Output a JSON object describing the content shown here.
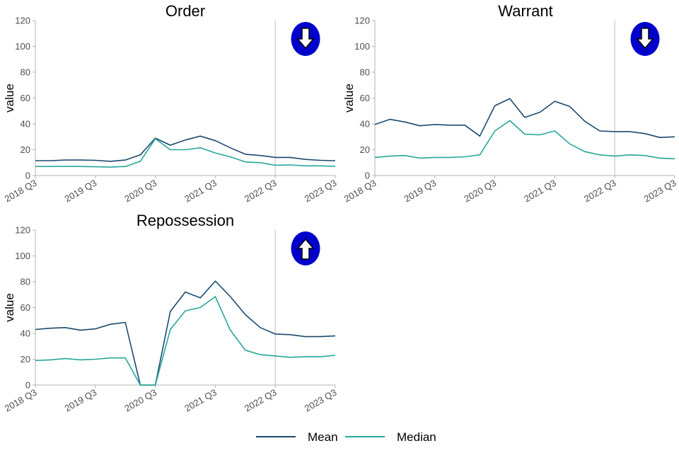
{
  "colors": {
    "mean": "#1a4a6e",
    "median": "#26a69a",
    "badge": "#0000cc"
  },
  "legend": {
    "mean_label": "Mean",
    "median_label": "Median"
  },
  "chart_data": [
    {
      "type": "line",
      "title": "Order",
      "ylabel": "value",
      "ylim": [
        0,
        120
      ],
      "yticks": [
        "0",
        "20",
        "40",
        "60",
        "80",
        "100",
        "120"
      ],
      "xticks": [
        "2018 Q3",
        "2019 Q3",
        "2020 Q3",
        "2021 Q3",
        "2022 Q3",
        "2023 Q3"
      ],
      "reference_line_x": "2022 Q3",
      "trend_icon": "arrow-down-icon",
      "x": [
        "2018 Q3",
        "2018 Q4",
        "2019 Q1",
        "2019 Q2",
        "2019 Q3",
        "2019 Q4",
        "2020 Q1",
        "2020 Q2",
        "2020 Q3",
        "2020 Q4",
        "2021 Q1",
        "2021 Q2",
        "2021 Q3",
        "2021 Q4",
        "2022 Q1",
        "2022 Q2",
        "2022 Q3",
        "2022 Q4",
        "2023 Q1",
        "2023 Q2",
        "2023 Q3"
      ],
      "series": [
        {
          "name": "Mean",
          "values": [
            11.5,
            11.5,
            12,
            12,
            11.8,
            11,
            12,
            16,
            29,
            23.5,
            27.5,
            30.5,
            27,
            21.5,
            16.5,
            15.5,
            14,
            14,
            12.5,
            11.8,
            11.5
          ]
        },
        {
          "name": "Median",
          "values": [
            7,
            7,
            7,
            7,
            6.8,
            6.5,
            7,
            11,
            28.5,
            20,
            20,
            21.5,
            17.5,
            14.5,
            10.5,
            10,
            8,
            8.2,
            7.5,
            7.5,
            7.2
          ]
        }
      ]
    },
    {
      "type": "line",
      "title": "Warrant",
      "ylabel": "value",
      "ylim": [
        0,
        120
      ],
      "yticks": [
        "0",
        "20",
        "40",
        "60",
        "80",
        "100",
        "120"
      ],
      "xticks": [
        "2018 Q3",
        "2019 Q3",
        "2020 Q3",
        "2021 Q3",
        "2022 Q3",
        "2023 Q3"
      ],
      "reference_line_x": "2022 Q3",
      "trend_icon": "arrow-down-icon",
      "x": [
        "2018 Q3",
        "2018 Q4",
        "2019 Q1",
        "2019 Q2",
        "2019 Q3",
        "2019 Q4",
        "2020 Q1",
        "2020 Q2",
        "2020 Q3",
        "2020 Q4",
        "2021 Q1",
        "2021 Q2",
        "2021 Q3",
        "2021 Q4",
        "2022 Q1",
        "2022 Q2",
        "2022 Q3",
        "2022 Q4",
        "2023 Q1",
        "2023 Q2",
        "2023 Q3"
      ],
      "series": [
        {
          "name": "Mean",
          "values": [
            39.5,
            43.5,
            41.5,
            38.5,
            39.5,
            39,
            39,
            30.5,
            54,
            59.5,
            45,
            49,
            57.5,
            53.5,
            42,
            34.5,
            34,
            34,
            32.5,
            29.5,
            30
          ]
        },
        {
          "name": "Median",
          "values": [
            14,
            15,
            15.5,
            13.5,
            14,
            14,
            14.5,
            16,
            34.5,
            42.5,
            32,
            31.5,
            34.5,
            24.5,
            18.5,
            16,
            15,
            16,
            15.5,
            13.5,
            13
          ]
        }
      ]
    },
    {
      "type": "line",
      "title": "Repossession",
      "ylabel": "value",
      "ylim": [
        0,
        120
      ],
      "yticks": [
        "0",
        "20",
        "40",
        "60",
        "80",
        "100",
        "120"
      ],
      "xticks": [
        "2018 Q3",
        "2019 Q3",
        "2020 Q3",
        "2021 Q3",
        "2022 Q3",
        "2023 Q3"
      ],
      "reference_line_x": "2022 Q3",
      "trend_icon": "arrow-up-icon",
      "x": [
        "2018 Q3",
        "2018 Q4",
        "2019 Q1",
        "2019 Q2",
        "2019 Q3",
        "2019 Q4",
        "2020 Q1",
        "2020 Q2",
        "2020 Q3",
        "2020 Q4",
        "2021 Q1",
        "2021 Q2",
        "2021 Q3",
        "2021 Q4",
        "2022 Q1",
        "2022 Q2",
        "2022 Q3",
        "2022 Q4",
        "2023 Q1",
        "2023 Q2",
        "2023 Q3"
      ],
      "series": [
        {
          "name": "Mean",
          "values": [
            43,
            44,
            44.5,
            42.5,
            43.5,
            47,
            48.5,
            0,
            0,
            57,
            72,
            67.5,
            80.5,
            68.5,
            54.5,
            44.5,
            39.5,
            39,
            37.5,
            37.5,
            38
          ]
        },
        {
          "name": "Median",
          "values": [
            19,
            19.5,
            20.5,
            19.5,
            20,
            21,
            21,
            0,
            0,
            43,
            57.5,
            60,
            68.5,
            42.5,
            27,
            23.5,
            22.5,
            21.5,
            22,
            22,
            23
          ]
        }
      ]
    }
  ]
}
